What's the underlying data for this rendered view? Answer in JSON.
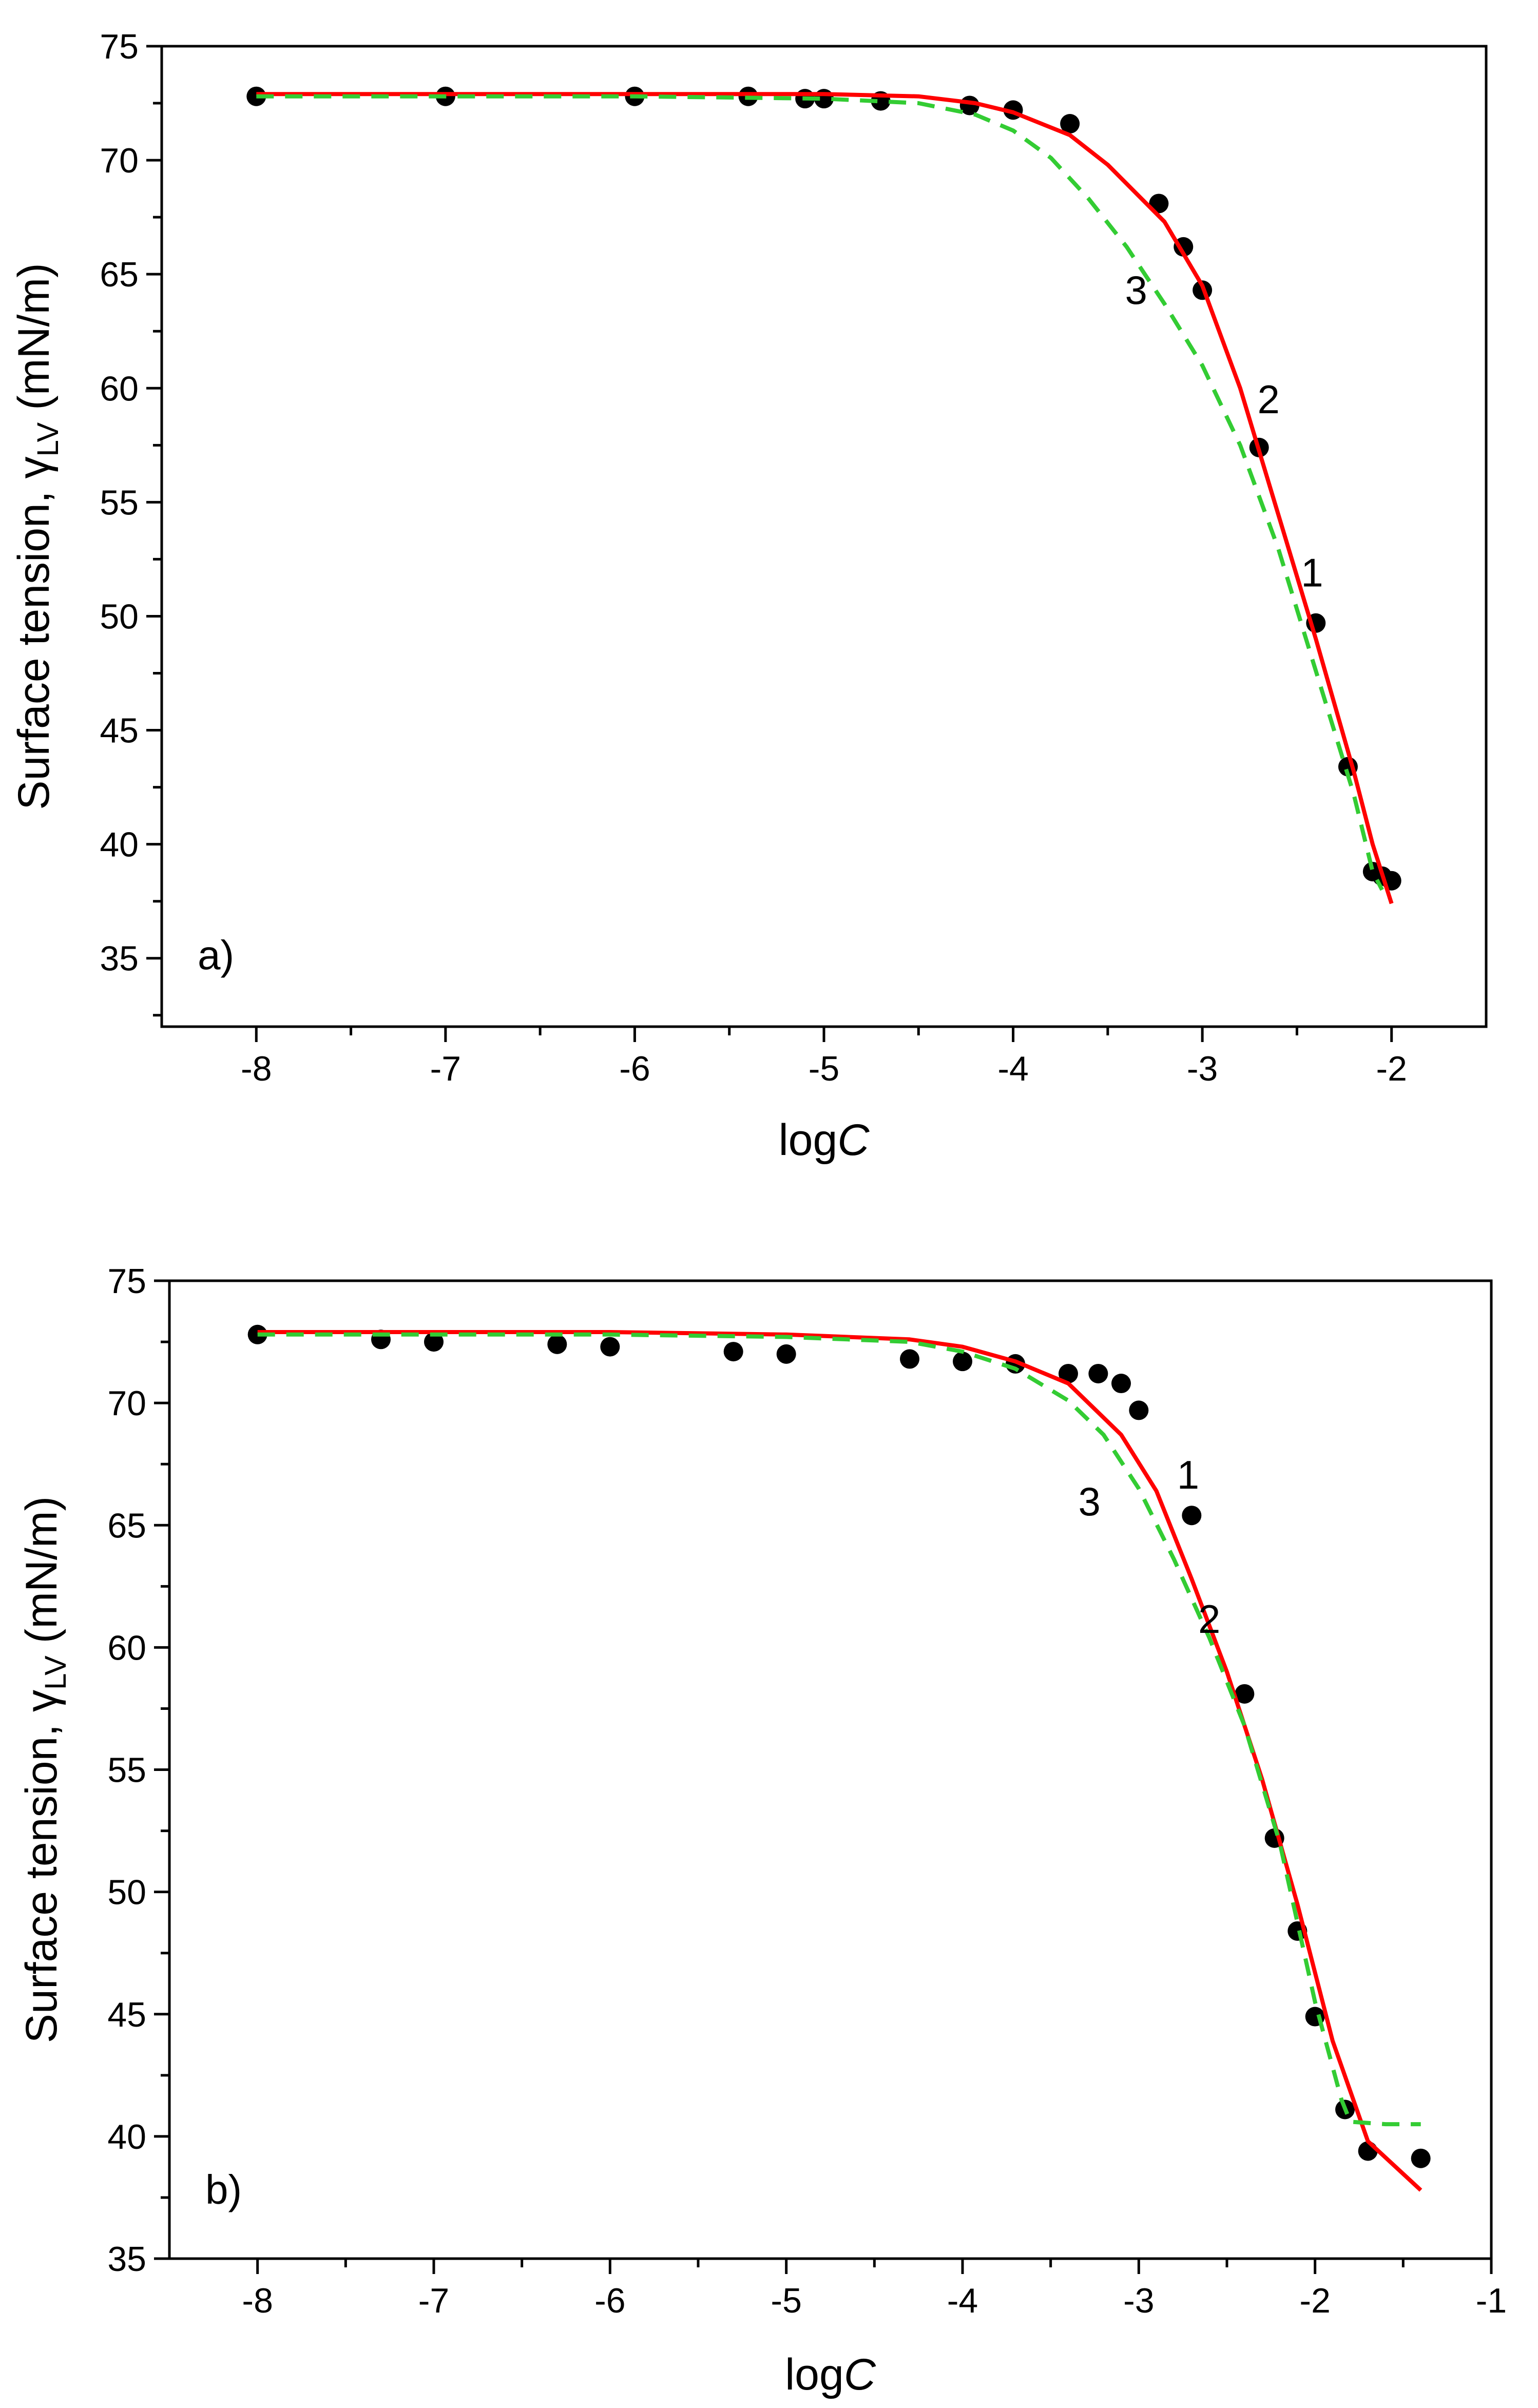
{
  "chart_data": [
    {
      "type": "line",
      "panel_label": "a)",
      "xlabel": "logC",
      "ylabel": "Surface tension, γLV (mN/m)",
      "xlim": [
        -8.5,
        -1.5
      ],
      "ylim": [
        32,
        75
      ],
      "x_ticks": [
        -8,
        -7,
        -6,
        -5,
        -4,
        -3,
        -2
      ],
      "y_ticks": [
        35,
        40,
        45,
        50,
        55,
        60,
        65,
        70,
        75
      ],
      "series": [
        {
          "name": "1",
          "kind": "scatter",
          "color": "#000000",
          "x": [
            -8,
            -7,
            -6,
            -5.4,
            -5.1,
            -5.0,
            -4.7,
            -4.23,
            -4.0,
            -3.7,
            -3.23,
            -3.1,
            -3.0,
            -2.7,
            -2.4,
            -2.23,
            -2.1,
            -2.05,
            -2.0
          ],
          "y": [
            72.8,
            72.8,
            72.8,
            72.8,
            72.7,
            72.7,
            72.6,
            72.4,
            72.2,
            71.6,
            68.1,
            66.2,
            64.3,
            57.4,
            49.7,
            43.4,
            38.8,
            38.6,
            38.4
          ]
        },
        {
          "name": "2",
          "kind": "line",
          "color": "#ff0000",
          "x": [
            -8,
            -6,
            -5,
            -4.5,
            -4.2,
            -4.0,
            -3.7,
            -3.5,
            -3.2,
            -3.0,
            -2.8,
            -2.6,
            -2.4,
            -2.2,
            -2.1,
            -2.0
          ],
          "y": [
            72.9,
            72.9,
            72.9,
            72.8,
            72.5,
            72.1,
            71.1,
            69.8,
            67.3,
            64.5,
            60.0,
            54.5,
            49.0,
            43.2,
            40.0,
            37.4
          ]
        },
        {
          "name": "3",
          "kind": "dashed",
          "color": "#33cc33",
          "x": [
            -8,
            -6,
            -5,
            -4.5,
            -4.2,
            -4.0,
            -3.8,
            -3.6,
            -3.4,
            -3.2,
            -3.0,
            -2.8,
            -2.6,
            -2.4,
            -2.2,
            -2.1,
            -2.05
          ],
          "y": [
            72.8,
            72.8,
            72.7,
            72.5,
            72.0,
            71.3,
            70.1,
            68.3,
            66.2,
            63.7,
            61.0,
            57.5,
            53.0,
            47.6,
            42.2,
            38.8,
            38.0
          ]
        }
      ],
      "curve_labels": [
        {
          "text": "1",
          "x": -2.42,
          "y": 51.3
        },
        {
          "text": "2",
          "x": -2.65,
          "y": 58.9
        },
        {
          "text": "3",
          "x": -3.35,
          "y": 63.7
        }
      ]
    },
    {
      "type": "line",
      "panel_label": "b)",
      "xlabel": "logC",
      "ylabel": "Surface tension, γLV (mN/m)",
      "xlim": [
        -8.5,
        -1
      ],
      "ylim": [
        35,
        75
      ],
      "x_ticks": [
        -8,
        -7,
        -6,
        -5,
        -4,
        -3,
        -2,
        -1
      ],
      "y_ticks": [
        35,
        40,
        45,
        50,
        55,
        60,
        65,
        70,
        75
      ],
      "series": [
        {
          "name": "1",
          "kind": "scatter",
          "color": "#000000",
          "x": [
            -8,
            -7.3,
            -7.0,
            -6.3,
            -6.0,
            -5.3,
            -5.0,
            -4.3,
            -4.0,
            -3.7,
            -3.4,
            -3.23,
            -3.1,
            -3.0,
            -2.7,
            -2.4,
            -2.23,
            -2.1,
            -2.0,
            -1.83,
            -1.7,
            -1.4
          ],
          "y": [
            72.8,
            72.6,
            72.5,
            72.4,
            72.3,
            72.1,
            72.0,
            71.8,
            71.7,
            71.6,
            71.2,
            71.2,
            70.8,
            69.7,
            65.4,
            58.1,
            52.2,
            48.4,
            44.9,
            41.1,
            39.4,
            39.1
          ]
        },
        {
          "name": "2",
          "kind": "line",
          "color": "#ff0000",
          "x": [
            -8,
            -6,
            -5,
            -4.3,
            -4.0,
            -3.7,
            -3.4,
            -3.1,
            -2.9,
            -2.7,
            -2.5,
            -2.3,
            -2.1,
            -1.9,
            -1.7,
            -1.4
          ],
          "y": [
            72.9,
            72.9,
            72.8,
            72.6,
            72.3,
            71.7,
            70.8,
            68.7,
            66.4,
            62.8,
            59.0,
            54.6,
            49.5,
            43.9,
            39.8,
            37.8
          ]
        },
        {
          "name": "3",
          "kind": "dashed",
          "color": "#33cc33",
          "x": [
            -8,
            -6,
            -5,
            -4.3,
            -4.0,
            -3.7,
            -3.4,
            -3.2,
            -3.0,
            -2.8,
            -2.6,
            -2.4,
            -2.2,
            -2.0,
            -1.85,
            -1.8,
            -1.6,
            -1.4
          ],
          "y": [
            72.8,
            72.8,
            72.7,
            72.5,
            72.1,
            71.4,
            70.1,
            68.7,
            66.5,
            63.6,
            60.4,
            56.8,
            52.0,
            45.5,
            41.5,
            40.6,
            40.5,
            40.5
          ]
        }
      ],
      "curve_labels": [
        {
          "text": "1",
          "x": -2.72,
          "y": 66.5
        },
        {
          "text": "2",
          "x": -2.6,
          "y": 60.6
        },
        {
          "text": "3",
          "x": -3.28,
          "y": 65.4
        }
      ]
    }
  ]
}
